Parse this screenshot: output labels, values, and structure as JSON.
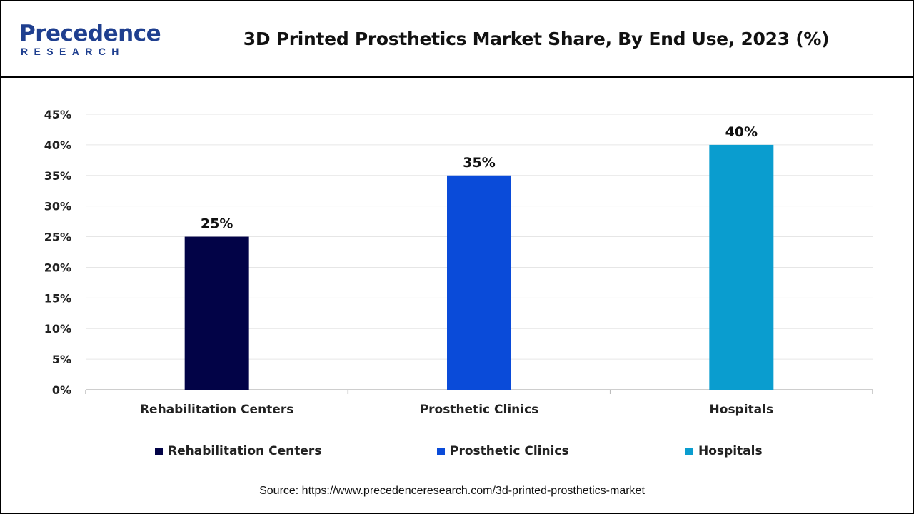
{
  "header": {
    "logo_main": "Precedence",
    "logo_sub": "RESEARCH",
    "title": "3D Printed Prosthetics Market Share, By End Use, 2023 (%)"
  },
  "chart_data": {
    "type": "bar",
    "title": "3D Printed Prosthetics Market Share, By End Use, 2023 (%)",
    "categories": [
      "Rehabilitation Centers",
      "Prosthetic Clinics",
      "Hospitals"
    ],
    "values": [
      25,
      35,
      40
    ],
    "value_labels": [
      "25%",
      "35%",
      "40%"
    ],
    "colors": [
      "#020347",
      "#0a4bd9",
      "#0a9dcf"
    ],
    "xlabel": "",
    "ylabel": "",
    "ylim": [
      0,
      45
    ],
    "yticks": [
      0,
      5,
      10,
      15,
      20,
      25,
      30,
      35,
      40,
      45
    ],
    "ytick_labels": [
      "0%",
      "5%",
      "10%",
      "15%",
      "20%",
      "25%",
      "30%",
      "35%",
      "40%",
      "45%"
    ],
    "grid": true,
    "legend_position": "bottom"
  },
  "legend": {
    "items": [
      {
        "label": "Rehabilitation Centers",
        "color": "#020347"
      },
      {
        "label": "Prosthetic Clinics",
        "color": "#0a4bd9"
      },
      {
        "label": "Hospitals",
        "color": "#0a9dcf"
      }
    ]
  },
  "footer": {
    "source": "Source: https://www.precedenceresearch.com/3d-printed-prosthetics-market"
  }
}
